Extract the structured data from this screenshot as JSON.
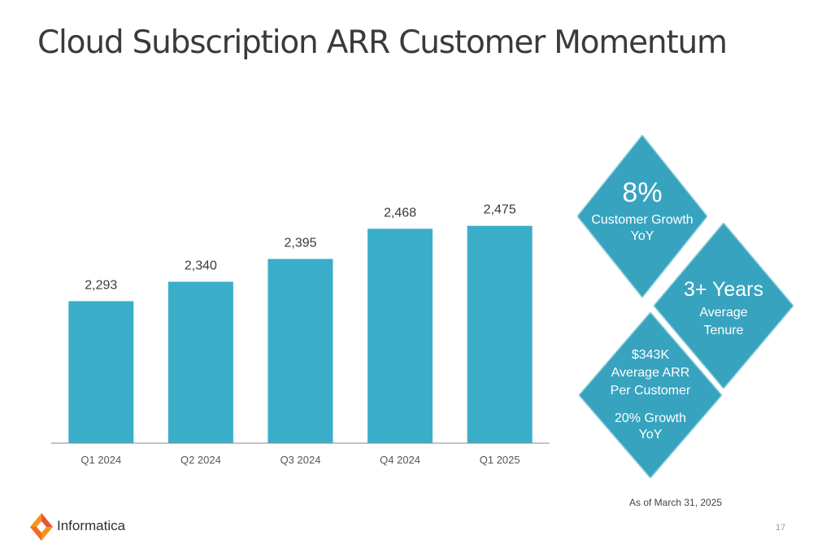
{
  "title": "Cloud Subscription ARR Customer Momentum",
  "chart_data": {
    "type": "bar",
    "categories": [
      "Q1 2024",
      "Q2 2024",
      "Q3 2024",
      "Q4 2024",
      "Q1 2025"
    ],
    "values": [
      2293,
      2340,
      2395,
      2468,
      2475
    ],
    "value_labels": [
      "2,293",
      "2,340",
      "2,395",
      "2,468",
      "2,475"
    ],
    "bar_color": "#3aaec9",
    "grid": false,
    "xlabel": "",
    "ylabel": ""
  },
  "metrics": {
    "customer_growth": {
      "value": "8%",
      "line1": "Customer Growth",
      "line2": "YoY"
    },
    "tenure": {
      "value": "3+ Years",
      "line1": "Average",
      "line2": "Tenure"
    },
    "arr_per_customer": {
      "value": "$343K",
      "line1": "Average ARR",
      "line2": "Per Customer",
      "growth_line1": "20% Growth",
      "growth_line2": "YoY"
    },
    "diamond_color": "#37a3bf"
  },
  "footnote": "As of March 31, 2025",
  "page_number": "17",
  "logo": {
    "name": "Informatica",
    "icon": "informatica-diamond-logo-icon"
  }
}
